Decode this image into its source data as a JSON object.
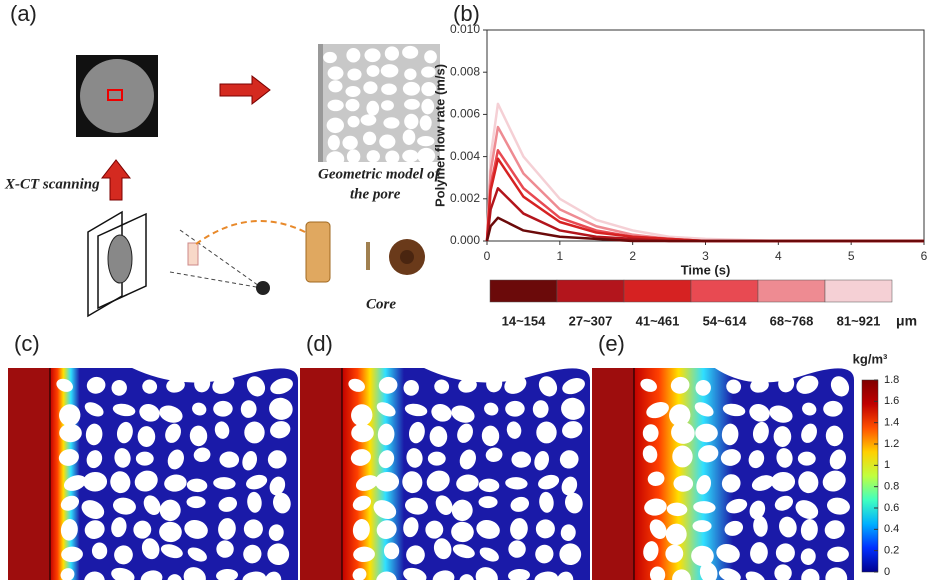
{
  "figure": {
    "labels": [
      "(a)",
      "(b)",
      "(c)",
      "(d)",
      "(e)"
    ],
    "xct": "X-CT scanning",
    "geometric_model": [
      "Geometric model of",
      "the pore"
    ],
    "core": "Core"
  },
  "chart_data": [
    {
      "type": "line",
      "xlabel": "Time (s)",
      "ylabel": "Polymer flow rate (m/s)",
      "x": [
        0,
        0.05,
        0.15,
        0.5,
        1,
        1.5,
        2,
        2.5,
        3,
        4,
        6
      ],
      "xlim": [
        0,
        6
      ],
      "xticks": [
        0,
        1,
        2,
        3,
        4,
        5,
        6
      ],
      "ylim": [
        0,
        0.01
      ],
      "yticks": [
        {
          "value": 0,
          "label": "0.000"
        },
        {
          "value": 0.002,
          "label": "0.002"
        },
        {
          "value": 0.004,
          "label": "0.004"
        },
        {
          "value": 0.006,
          "label": "0.006"
        },
        {
          "value": 0.008,
          "label": "0.008"
        },
        {
          "value": 0.01,
          "label": "0.010"
        }
      ],
      "legend_title": "μm",
      "series": [
        {
          "name": "14~154",
          "color": "#6b0a0a",
          "values": [
            0,
            0.0007,
            0.0011,
            0.0005,
            0.0002,
            0.0001,
            0,
            0,
            0,
            0,
            0
          ]
        },
        {
          "name": "27~307",
          "color": "#b3151c",
          "values": [
            0,
            0.0015,
            0.0025,
            0.0013,
            0.0005,
            0.0002,
            0.0001,
            0,
            0,
            0,
            0
          ]
        },
        {
          "name": "41~461",
          "color": "#d62222",
          "values": [
            0,
            0.0024,
            0.0039,
            0.0021,
            0.0009,
            0.0004,
            0.0002,
            0.0001,
            0,
            0,
            0
          ]
        },
        {
          "name": "54~614",
          "color": "#e84a52",
          "values": [
            0,
            0.0026,
            0.0043,
            0.0025,
            0.0011,
            0.0005,
            0.0002,
            0.0001,
            0,
            0,
            0
          ]
        },
        {
          "name": "68~768",
          "color": "#ee8b92",
          "values": [
            0,
            0.0033,
            0.0054,
            0.0032,
            0.0015,
            0.0007,
            0.0003,
            0.0001,
            0,
            0,
            0
          ]
        },
        {
          "name": "81~921",
          "color": "#f5d0d5",
          "values": [
            0,
            0.004,
            0.0065,
            0.004,
            0.002,
            0.001,
            0.0005,
            0.0002,
            0.0001,
            0,
            0
          ]
        }
      ]
    },
    {
      "type": "colorbar",
      "title": "kg/m³",
      "clim": [
        0,
        1.8
      ],
      "ticks": [
        0,
        0.2,
        0.4,
        0.6,
        0.8,
        1,
        1.2,
        1.4,
        1.6,
        1.8
      ],
      "colors": [
        "#000090",
        "#0030ff",
        "#00b0ff",
        "#40ffc0",
        "#c0ff40",
        "#ffd000",
        "#ff5000",
        "#c00000",
        "#800000"
      ]
    }
  ]
}
